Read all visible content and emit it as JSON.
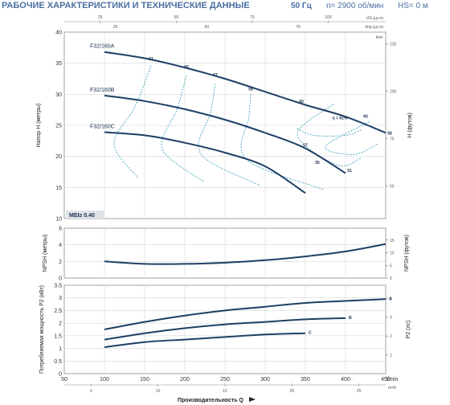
{
  "header": {
    "title": "РАБОЧИЕ ХАРАКТЕРИСТИКИ И ТЕХНИЧЕСКИЕ ДАННЫЕ",
    "frequency": "50 Гц",
    "speed": "n= 2900 об/мин",
    "hs": "HS= 0 м"
  },
  "colors": {
    "curve": "#1e3f66",
    "efficiency": "#2e9ab5",
    "grid": "#cfcfcf",
    "panel_bg": "#ffffff",
    "mei_bg": "#dfe3e8"
  },
  "chart_data": {
    "type": "line",
    "x_axes": {
      "bottom_primary": {
        "label": "l/min",
        "ticks": [
          "50",
          "100",
          "150",
          "200",
          "250",
          "300",
          "350",
          "400",
          "450"
        ],
        "range": [
          50,
          450
        ]
      },
      "bottom_secondary": {
        "label": "m³/h",
        "ticks": [
          "5",
          "10",
          "15",
          "20",
          "25"
        ],
        "values": [
          5,
          10,
          15,
          20,
          25
        ]
      },
      "top_us": {
        "label": "US g.p.m.",
        "ticks": [
          "25",
          "50",
          "75",
          "100"
        ],
        "values": [
          25,
          50,
          75,
          100
        ]
      },
      "top_imp": {
        "label": "Imp g.p.m.",
        "ticks": [
          "25",
          "50",
          "75",
          "100"
        ],
        "values": [
          25,
          50,
          75,
          100
        ]
      },
      "title": "Производительность Q"
    },
    "head": {
      "ylabel": "Напор H (метры)",
      "ylim": [
        10,
        40
      ],
      "yticks": [
        "10",
        "15",
        "20",
        "25",
        "30",
        "35",
        "40"
      ],
      "ylabel_right": "H (футов)",
      "right_unit": "feet",
      "right_ticks": [
        "50",
        "75",
        "100",
        "125"
      ],
      "right_values": [
        50,
        75,
        100,
        125
      ],
      "mei": "MEI≥ 0.40",
      "series": [
        {
          "name": "F32/160A",
          "x": [
            100,
            150,
            200,
            250,
            300,
            350,
            400,
            450
          ],
          "y": [
            36.8,
            35.8,
            34.3,
            32.5,
            30.4,
            28.3,
            26.4,
            23.8
          ]
        },
        {
          "name": "F32/160B",
          "x": [
            100,
            150,
            200,
            250,
            300,
            350,
            400
          ],
          "y": [
            29.8,
            28.9,
            27.6,
            25.9,
            23.8,
            21.3,
            17.3
          ]
        },
        {
          "name": "F32/160C",
          "x": [
            100,
            150,
            200,
            250,
            300,
            350
          ],
          "y": [
            23.9,
            23.4,
            22.2,
            20.6,
            18.4,
            14.1
          ]
        }
      ],
      "efficiency_labels": [
        "51",
        "55",
        "57",
        "58",
        "60",
        "60",
        "58",
        "57",
        "55",
        "51",
        "η = 62%"
      ]
    },
    "npsh": {
      "ylabel": "NPSH (метры)",
      "ylim": [
        0,
        6
      ],
      "yticks": [
        "0",
        "2",
        "4",
        "6"
      ],
      "ylabel_right": "NPSH (футов)",
      "right_ticks": [
        "0",
        "5",
        "10",
        "15"
      ],
      "right_values": [
        0,
        5,
        10,
        15
      ],
      "series": [
        {
          "name": "NPSH",
          "x": [
            100,
            150,
            200,
            250,
            300,
            350,
            400,
            450
          ],
          "y": [
            2.0,
            1.7,
            1.7,
            1.85,
            2.15,
            2.6,
            3.2,
            4.1
          ]
        }
      ]
    },
    "power": {
      "ylabel": "Потребляемая мощность P2 (кВт)",
      "ylim": [
        0,
        3.5
      ],
      "yticks": [
        "0",
        "0.5",
        "1",
        "1.5",
        "2",
        "2.5",
        "3",
        "3.5"
      ],
      "ylabel_right": "P2 (лс)",
      "right_ticks": [
        "1",
        "2",
        "3",
        "4"
      ],
      "right_values": [
        1,
        2,
        3,
        4
      ],
      "series": [
        {
          "name": "A",
          "x": [
            100,
            150,
            200,
            250,
            300,
            350,
            400,
            450
          ],
          "y": [
            1.75,
            2.05,
            2.3,
            2.5,
            2.65,
            2.8,
            2.88,
            2.95
          ]
        },
        {
          "name": "B",
          "x": [
            100,
            150,
            200,
            250,
            300,
            350,
            400
          ],
          "y": [
            1.35,
            1.6,
            1.8,
            1.95,
            2.05,
            2.15,
            2.2
          ]
        },
        {
          "name": "C",
          "x": [
            100,
            150,
            200,
            250,
            300,
            350
          ],
          "y": [
            1.05,
            1.25,
            1.35,
            1.45,
            1.55,
            1.6
          ]
        }
      ]
    }
  }
}
